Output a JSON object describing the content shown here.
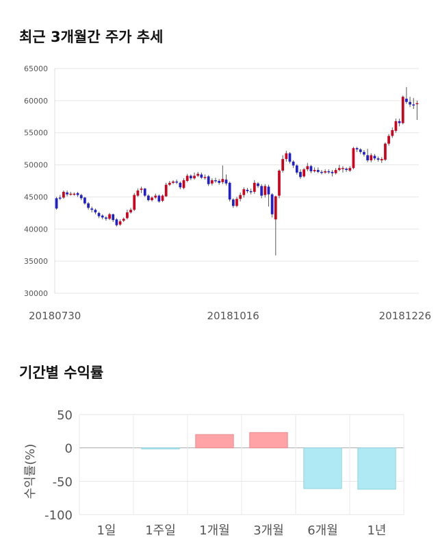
{
  "sections": {
    "price_title": "최근 3개월간 주가 추세",
    "return_title": "기간별 수익률"
  },
  "chart_data": [
    {
      "type": "candlestick",
      "title": "최근 3개월간 주가 추세",
      "ylim": [
        30000,
        65000
      ],
      "y_ticks": [
        "65000",
        "60000",
        "55000",
        "50000",
        "45000",
        "40000",
        "35000",
        "30000"
      ],
      "x_tick_labels": [
        "20180730",
        "20181016",
        "20181226"
      ],
      "grid": true,
      "colors": {
        "up": "#d0021b",
        "down": "#1f1fcc",
        "wick": "#555555"
      },
      "candles": [
        [
          44800,
          43200,
          45000,
          43000
        ],
        [
          44900,
          44800,
          45300,
          44500
        ],
        [
          44900,
          45800,
          46000,
          44700
        ],
        [
          45700,
          45400,
          46000,
          45100
        ],
        [
          45500,
          45500,
          45800,
          45200
        ],
        [
          45500,
          45500,
          45700,
          45200
        ],
        [
          45600,
          45300,
          45800,
          45000
        ],
        [
          45300,
          44800,
          45500,
          44500
        ],
        [
          44900,
          44000,
          45000,
          43800
        ],
        [
          44000,
          43300,
          44200,
          43000
        ],
        [
          43200,
          43000,
          43500,
          42600
        ],
        [
          43000,
          42600,
          43200,
          42300
        ],
        [
          42500,
          42000,
          42700,
          41700
        ],
        [
          42100,
          41800,
          42300,
          41500
        ],
        [
          41800,
          41600,
          42000,
          41300
        ],
        [
          41600,
          42300,
          42500,
          41400
        ],
        [
          42300,
          41400,
          42400,
          41100
        ],
        [
          41500,
          40600,
          41700,
          40400
        ],
        [
          40700,
          41200,
          41500,
          40500
        ],
        [
          41300,
          41600,
          41800,
          41100
        ],
        [
          41700,
          42600,
          43000,
          41500
        ],
        [
          42600,
          43000,
          43300,
          42400
        ],
        [
          43000,
          45300,
          45600,
          42800
        ],
        [
          45200,
          46000,
          46300,
          45000
        ],
        [
          46100,
          46300,
          46600,
          45600
        ],
        [
          46300,
          45200,
          46400,
          45000
        ],
        [
          45200,
          44500,
          45400,
          44300
        ],
        [
          44500,
          44900,
          45100,
          44300
        ],
        [
          44900,
          45200,
          45500,
          44700
        ],
        [
          45200,
          44300,
          45400,
          44100
        ],
        [
          44400,
          45200,
          45400,
          44200
        ],
        [
          45100,
          46900,
          47200,
          45000
        ],
        [
          46900,
          47200,
          47500,
          46700
        ],
        [
          47200,
          47400,
          47600,
          47000
        ],
        [
          47400,
          47300,
          47700,
          47000
        ],
        [
          47200,
          46500,
          47400,
          46200
        ],
        [
          46400,
          47600,
          47900,
          46200
        ],
        [
          47500,
          48300,
          48600,
          47300
        ],
        [
          48300,
          47900,
          48500,
          47600
        ],
        [
          47900,
          48300,
          48800,
          47700
        ],
        [
          48300,
          48600,
          48900,
          48100
        ],
        [
          48500,
          48000,
          48800,
          47800
        ],
        [
          48000,
          48100,
          48500,
          47700
        ],
        [
          48200,
          47000,
          48400,
          46700
        ],
        [
          47100,
          47600,
          47900,
          46800
        ],
        [
          47600,
          47500,
          48000,
          47200
        ],
        [
          47500,
          47200,
          47800,
          46900
        ],
        [
          47300,
          47800,
          49900,
          47000
        ],
        [
          47700,
          47100,
          48500,
          46800
        ],
        [
          47200,
          44600,
          47400,
          44300
        ],
        [
          44600,
          43600,
          44800,
          43300
        ],
        [
          43600,
          44700,
          45000,
          43400
        ],
        [
          44700,
          45300,
          45700,
          44300
        ],
        [
          45300,
          46200,
          46500,
          44900
        ],
        [
          46100,
          45900,
          46400,
          45600
        ],
        [
          45900,
          45800,
          46300,
          45400
        ],
        [
          45800,
          47200,
          47600,
          45500
        ],
        [
          47100,
          46700,
          47300,
          46400
        ],
        [
          46700,
          45200,
          47000,
          44800
        ],
        [
          45300,
          46700,
          47000,
          44900
        ],
        [
          46600,
          45400,
          46900,
          43500
        ],
        [
          45400,
          42300,
          45600,
          41800
        ],
        [
          41500,
          45100,
          45200,
          35900
        ],
        [
          45200,
          49100,
          49300,
          44800
        ],
        [
          49100,
          50900,
          51500,
          48800
        ],
        [
          50900,
          51800,
          52200,
          50500
        ],
        [
          51800,
          50500,
          52000,
          50200
        ],
        [
          50500,
          49900,
          50700,
          49500
        ],
        [
          49900,
          48800,
          50100,
          48500
        ],
        [
          48900,
          48100,
          49300,
          47800
        ],
        [
          48200,
          49300,
          49500,
          48000
        ],
        [
          49300,
          49800,
          50300,
          49000
        ],
        [
          49800,
          49000,
          50000,
          48700
        ],
        [
          49000,
          49200,
          49600,
          48800
        ],
        [
          49200,
          48900,
          49600,
          48700
        ],
        [
          48900,
          48800,
          49200,
          48500
        ],
        [
          48800,
          49000,
          49300,
          48600
        ],
        [
          49000,
          48900,
          49300,
          48600
        ],
        [
          48900,
          48700,
          49200,
          48200
        ],
        [
          48700,
          49200,
          49500,
          48500
        ],
        [
          49200,
          49500,
          50000,
          49000
        ],
        [
          49400,
          49500,
          49800,
          48800
        ],
        [
          49400,
          49200,
          49600,
          48900
        ],
        [
          49100,
          49500,
          49800,
          48900
        ],
        [
          49500,
          52600,
          52800,
          49300
        ],
        [
          52600,
          52400,
          52800,
          52000
        ],
        [
          52400,
          52000,
          52600,
          51700
        ],
        [
          52000,
          51600,
          52300,
          51300
        ],
        [
          51500,
          50700,
          52500,
          50400
        ],
        [
          50700,
          51500,
          51800,
          50400
        ],
        [
          51400,
          51000,
          51700,
          50700
        ],
        [
          51000,
          50800,
          51300,
          50500
        ],
        [
          50700,
          50900,
          51200,
          50300
        ],
        [
          50800,
          53300,
          53500,
          50600
        ],
        [
          53300,
          54500,
          54800,
          53000
        ],
        [
          54500,
          55400,
          55800,
          54200
        ],
        [
          55300,
          56800,
          57200,
          55000
        ],
        [
          56800,
          56500,
          57200,
          56000
        ],
        [
          56500,
          60600,
          60800,
          56300
        ],
        [
          60300,
          59800,
          62100,
          59500
        ],
        [
          59800,
          59400,
          60600,
          59000
        ],
        [
          59400,
          59300,
          60400,
          58700
        ],
        [
          59500,
          59600,
          60000,
          57000
        ]
      ]
    },
    {
      "type": "bar",
      "title": "기간별 수익률",
      "categories": [
        "1일",
        "1주일",
        "1개월",
        "3개월",
        "6개월",
        "1년"
      ],
      "values": [
        0,
        -1,
        20,
        23,
        -61,
        -62
      ],
      "ylabel": "수익률(%)",
      "ylim": [
        -100,
        50
      ],
      "y_ticks": [
        "50",
        "0",
        "-50",
        "-100"
      ],
      "grid": true,
      "colors": {
        "positive": "#ffa3a6",
        "negative": "#afeaf4"
      }
    }
  ]
}
